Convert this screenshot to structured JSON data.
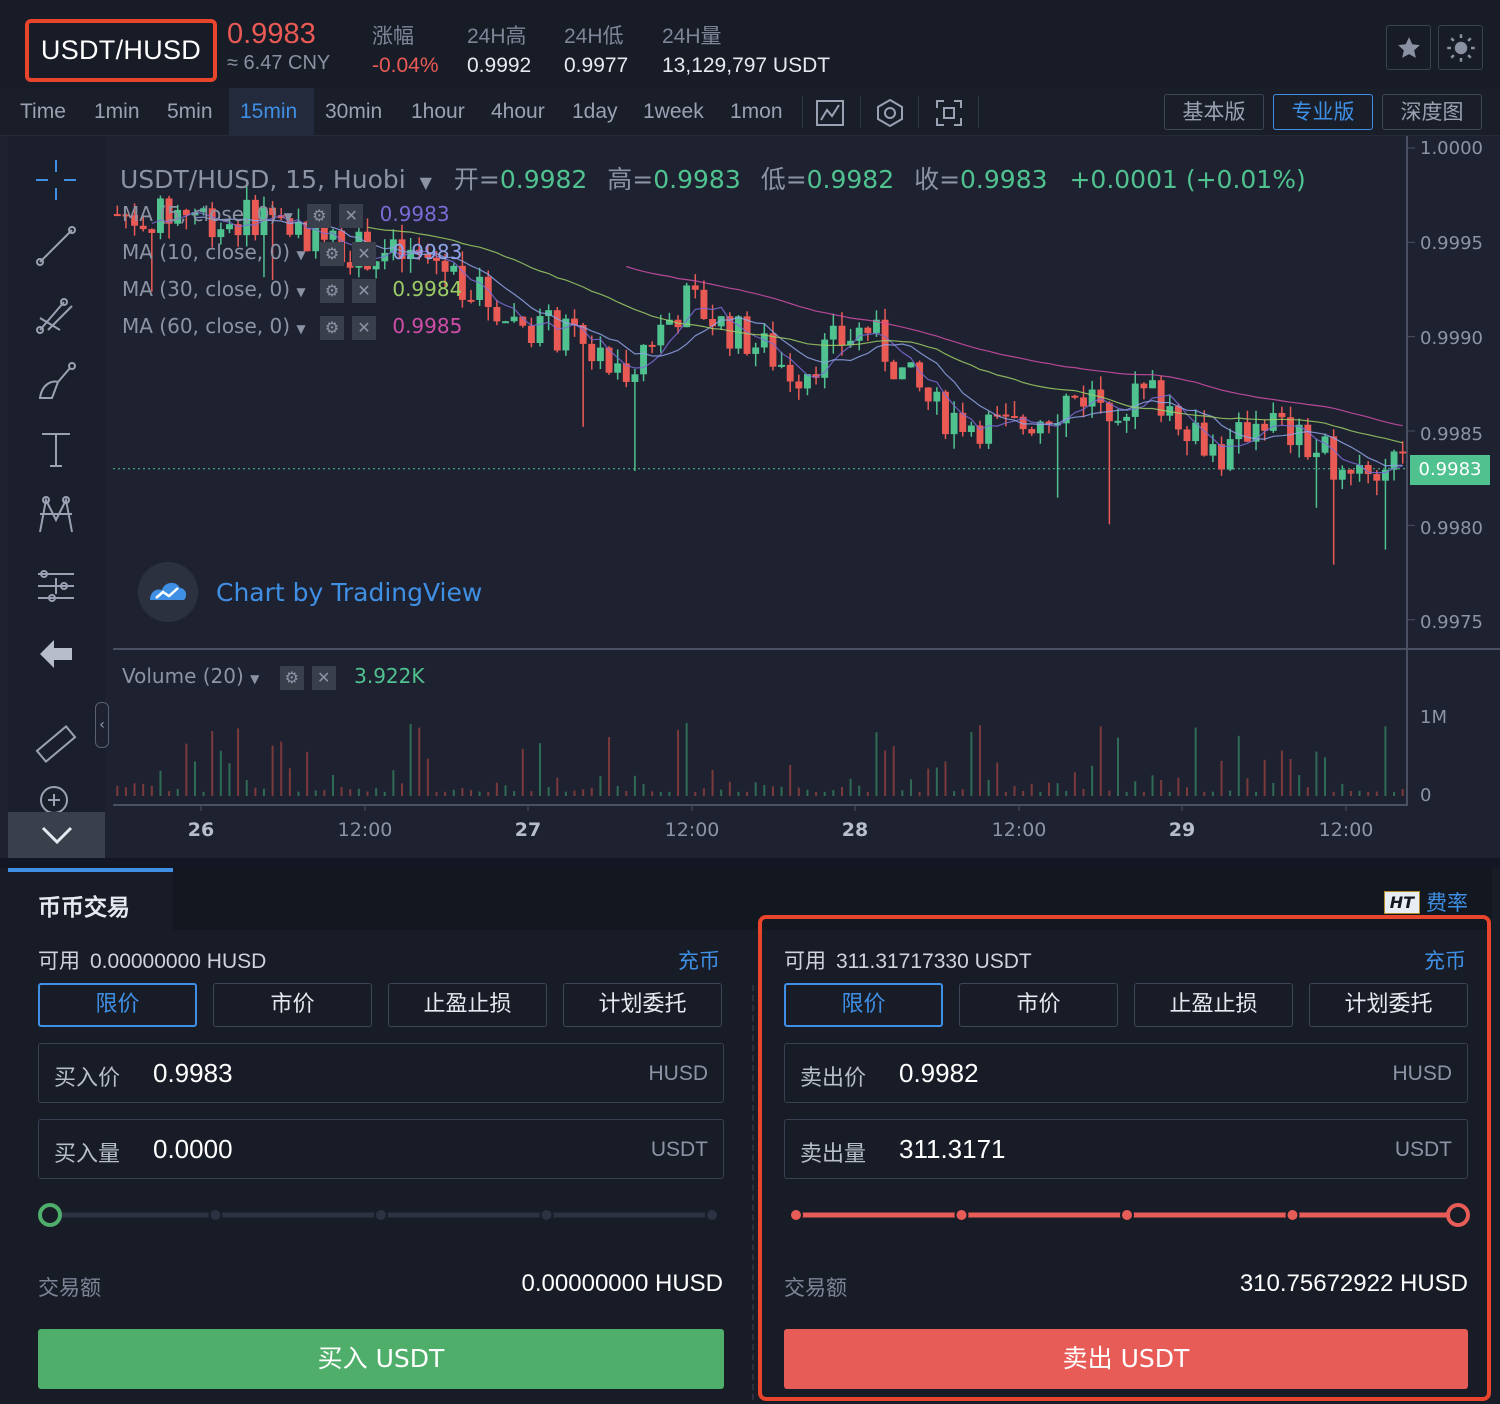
{
  "header": {
    "pair": "USDT/HUSD",
    "last_price": "0.9983",
    "cny_price": "≈ 6.47 CNY",
    "stats": [
      {
        "label": "涨幅",
        "value": "-0.04%",
        "color": "red"
      },
      {
        "label": "24H高",
        "value": "0.9992",
        "color": "white"
      },
      {
        "label": "24H低",
        "value": "0.9977",
        "color": "white"
      },
      {
        "label": "24H量",
        "value": "13,129,797 USDT",
        "color": "white"
      }
    ],
    "icons": [
      "star-icon",
      "theme-sun-icon"
    ]
  },
  "timeframes": {
    "items": [
      "Time",
      "1min",
      "5min",
      "15min",
      "30min",
      "1hour",
      "4hour",
      "1day",
      "1week",
      "1mon"
    ],
    "active": "15min",
    "tool_icons": [
      "indicator-icon",
      "settings-hex-icon",
      "fullscreen-icon"
    ],
    "versions": [
      "基本版",
      "专业版",
      "深度图"
    ],
    "active_version": "专业版"
  },
  "chart": {
    "title": "USDT/HUSD, 15, Huobi",
    "ohlc": {
      "open_label": "开=",
      "open": "0.9982",
      "high_label": "高=",
      "high": "0.9983",
      "low_label": "低=",
      "low": "0.9982",
      "close_label": "收=",
      "close": "0.9983",
      "change": "+0.0001 (+0.01%)"
    },
    "ma_lines": [
      {
        "label": "MA (5, close, 0)",
        "value": "0.9983",
        "color": "#7b6bd6"
      },
      {
        "label": "MA (10, close, 0)",
        "value": "0.9983",
        "color": "#8fa3e8"
      },
      {
        "label": "MA (30, close, 0)",
        "value": "0.9984",
        "color": "#9ccc65"
      },
      {
        "label": "MA (60, close, 0)",
        "value": "0.9985",
        "color": "#d04ea8"
      }
    ],
    "tradingview_label": "Chart by TradingView",
    "last_tag": "0.9983",
    "volume_legend": "Volume (20)",
    "volume_value": "3.922K"
  },
  "chart_data": {
    "type": "candlestick",
    "y_ticks": [
      "1.0000",
      "0.9995",
      "0.9990",
      "0.9985",
      "0.9980",
      "0.9975"
    ],
    "ylim": [
      0.99735,
      1.0
    ],
    "volume_ticks": [
      "1M",
      "0"
    ],
    "x_ticks": [
      {
        "label": "26",
        "bold": true
      },
      {
        "label": "12:00",
        "bold": false
      },
      {
        "label": "27",
        "bold": true
      },
      {
        "label": "12:00",
        "bold": false
      },
      {
        "label": "28",
        "bold": true
      },
      {
        "label": "12:00",
        "bold": false
      },
      {
        "label": "29",
        "bold": true
      },
      {
        "label": "12:00",
        "bold": false
      }
    ],
    "last_price": 0.9983,
    "price_path": [
      0.99965,
      0.99962,
      0.99968,
      0.9996,
      0.99965,
      0.99958,
      0.9995,
      0.99945,
      0.99942,
      0.9994,
      0.99925,
      0.9991,
      0.99905,
      0.99895,
      0.9988,
      0.999,
      0.9992,
      0.99905,
      0.99895,
      0.9988,
      0.99895,
      0.99905,
      0.9988,
      0.9986,
      0.99855,
      0.9985,
      0.9986,
      0.9987,
      0.99865,
      0.9987,
      0.99855,
      0.99835,
      0.9986,
      0.99845,
      0.99835,
      0.9983,
      0.9983
    ],
    "colors": {
      "up": "#4fc290",
      "down": "#ea5a55"
    }
  },
  "toolbar_icons": [
    "crosshair-icon",
    "trendline-icon",
    "fork-icon",
    "brush-icon",
    "text-icon",
    "pattern-icon",
    "measure-icon",
    "back-arrow-icon",
    "ruler-icon",
    "zoom-in-icon"
  ],
  "trade": {
    "tab": "币币交易",
    "fee_badge": "HT",
    "fee_label": "费率",
    "buy": {
      "available_label": "可用",
      "available": "0.00000000 HUSD",
      "deposit": "充币",
      "order_types": [
        "限价",
        "市价",
        "止盈止损",
        "计划委托"
      ],
      "active_type": "限价",
      "price_label": "买入价",
      "price": "0.9983",
      "price_unit": "HUSD",
      "amount_label": "买入量",
      "amount": "0.0000",
      "amount_unit": "USDT",
      "slider_fraction": 0,
      "total_label": "交易额",
      "total": "0.00000000 HUSD",
      "button": "买入 USDT"
    },
    "sell": {
      "available_label": "可用",
      "available": "311.31717330 USDT",
      "deposit": "充币",
      "order_types": [
        "限价",
        "市价",
        "止盈止损",
        "计划委托"
      ],
      "active_type": "限价",
      "price_label": "卖出价",
      "price": "0.9982",
      "price_unit": "HUSD",
      "amount_label": "卖出量",
      "amount": "311.3171",
      "amount_unit": "USDT",
      "slider_fraction": 1,
      "total_label": "交易额",
      "total": "310.75672922 HUSD",
      "button": "卖出 USDT"
    }
  }
}
